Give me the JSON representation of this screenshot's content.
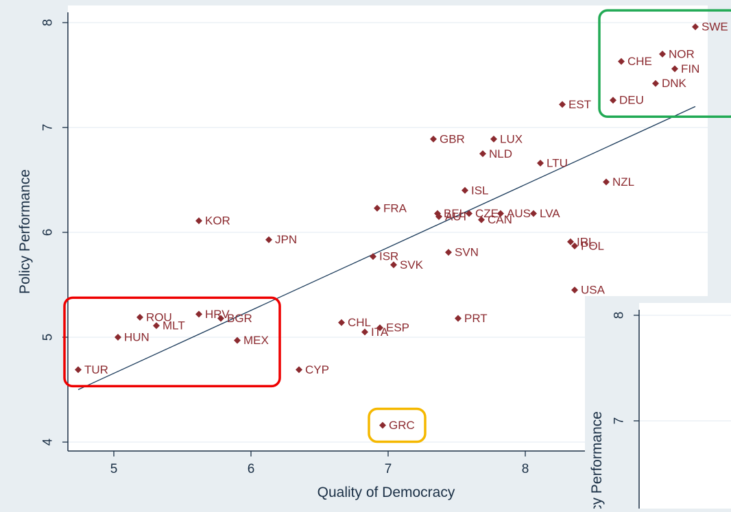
{
  "chart_data": [
    {
      "type": "scatter",
      "xlabel": "Quality of Democracy",
      "ylabel": "Policy Performance",
      "xlim": [
        4.68,
        9.33
      ],
      "ylim": [
        3.88,
        8.1
      ],
      "x_ticks": [
        "5",
        "6",
        "7",
        "8"
      ],
      "y_ticks": [
        "4",
        "5",
        "6",
        "7",
        "8"
      ],
      "grid": "horizontal",
      "points": [
        {
          "label": "SWE",
          "x": 9.24,
          "y": 7.96
        },
        {
          "label": "NOR",
          "x": 9.0,
          "y": 7.7
        },
        {
          "label": "CHE",
          "x": 8.7,
          "y": 7.63
        },
        {
          "label": "FIN",
          "x": 9.09,
          "y": 7.56
        },
        {
          "label": "DNK",
          "x": 8.95,
          "y": 7.42
        },
        {
          "label": "DEU",
          "x": 8.64,
          "y": 7.26
        },
        {
          "label": "EST",
          "x": 8.27,
          "y": 7.22
        },
        {
          "label": "GBR",
          "x": 7.33,
          "y": 6.89
        },
        {
          "label": "LUX",
          "x": 7.77,
          "y": 6.89
        },
        {
          "label": "NLD",
          "x": 7.69,
          "y": 6.75
        },
        {
          "label": "LTU",
          "x": 8.11,
          "y": 6.66
        },
        {
          "label": "NZL",
          "x": 8.59,
          "y": 6.48
        },
        {
          "label": "ISL",
          "x": 7.56,
          "y": 6.4
        },
        {
          "label": "FRA",
          "x": 6.92,
          "y": 6.23
        },
        {
          "label": "BEL",
          "x": 7.36,
          "y": 6.18
        },
        {
          "label": "AUT",
          "x": 7.37,
          "y": 6.15
        },
        {
          "label": "CZE",
          "x": 7.59,
          "y": 6.18
        },
        {
          "label": "CAN",
          "x": 7.68,
          "y": 6.12
        },
        {
          "label": "AUS",
          "x": 7.82,
          "y": 6.18
        },
        {
          "label": "LVA",
          "x": 8.06,
          "y": 6.18
        },
        {
          "label": "KOR",
          "x": 5.62,
          "y": 6.11
        },
        {
          "label": "JPN",
          "x": 6.13,
          "y": 5.93
        },
        {
          "label": "IRL",
          "x": 8.33,
          "y": 5.91
        },
        {
          "label": "POL",
          "x": 8.36,
          "y": 5.87
        },
        {
          "label": "SVN",
          "x": 7.44,
          "y": 5.81
        },
        {
          "label": "ISR",
          "x": 6.89,
          "y": 5.77
        },
        {
          "label": "SVK",
          "x": 7.04,
          "y": 5.69
        },
        {
          "label": "USA",
          "x": 8.36,
          "y": 5.45
        },
        {
          "label": "HRV",
          "x": 5.62,
          "y": 5.22
        },
        {
          "label": "ROU",
          "x": 5.19,
          "y": 5.19
        },
        {
          "label": "BGR",
          "x": 5.78,
          "y": 5.18
        },
        {
          "label": "MLT",
          "x": 5.31,
          "y": 5.11
        },
        {
          "label": "CHL",
          "x": 6.66,
          "y": 5.14
        },
        {
          "label": "PRT",
          "x": 7.51,
          "y": 5.18
        },
        {
          "label": "ESP",
          "x": 6.94,
          "y": 5.09
        },
        {
          "label": "ITA",
          "x": 6.83,
          "y": 5.05
        },
        {
          "label": "HUN",
          "x": 5.03,
          "y": 5.0
        },
        {
          "label": "MEX",
          "x": 5.9,
          "y": 4.97
        },
        {
          "label": "TUR",
          "x": 4.74,
          "y": 4.69
        },
        {
          "label": "CYP",
          "x": 6.35,
          "y": 4.69
        },
        {
          "label": "GRC",
          "x": 6.96,
          "y": 4.16
        }
      ],
      "fit_line": {
        "x": [
          4.74,
          9.24
        ],
        "y": [
          4.5,
          7.2
        ]
      },
      "highlights": [
        {
          "color": "#22aa55",
          "labels": [
            "SWE",
            "NOR",
            "CHE",
            "FIN",
            "DNK",
            "DEU"
          ]
        },
        {
          "color": "#ee0000",
          "labels": [
            "ROU",
            "HRV",
            "BGR",
            "MLT",
            "HUN",
            "MEX",
            "TUR"
          ]
        },
        {
          "color": "#f5b800",
          "labels": [
            "GRC"
          ]
        }
      ]
    },
    {
      "type": "scatter",
      "ylabel": "Policy Performance",
      "y_ticks": [
        "7",
        "8"
      ],
      "points": []
    }
  ],
  "colors": {
    "marker": "#8b2a2f",
    "label": "#8b2a2f",
    "axis": "#1a2f45",
    "fit": "#1a3a5a",
    "grid": "#e6eef3",
    "plot_bg": "#ffffff",
    "page_bg": "#e8eef2"
  }
}
